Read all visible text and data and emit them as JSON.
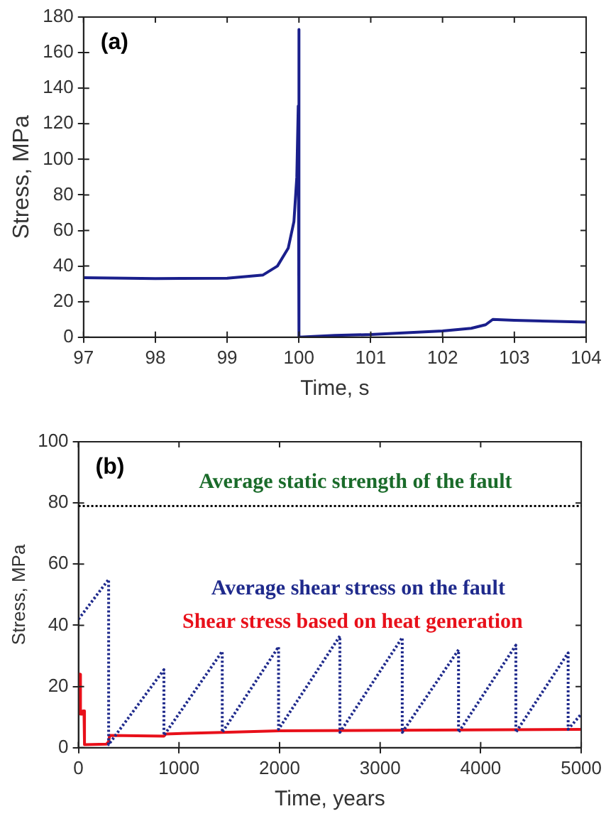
{
  "chart_data": [
    {
      "type": "line",
      "xlabel": "Time, s",
      "ylabel": "Stress, MPa",
      "annotations": [
        "(a)"
      ],
      "xlim": [
        97,
        104
      ],
      "xticks": [
        97,
        98,
        99,
        100,
        101,
        102,
        103,
        104
      ],
      "ylim": [
        0,
        180
      ],
      "yticks": [
        0,
        20,
        40,
        60,
        80,
        100,
        120,
        140,
        160,
        180
      ],
      "grid": false,
      "legend": false,
      "marker": "none",
      "line_style": "solid",
      "series": [
        {
          "color": "#1a1f8c",
          "x": [
            97,
            98,
            99,
            99.5,
            99.7,
            99.85,
            99.93,
            99.97,
            99.99,
            100.0,
            100.0,
            100.5,
            101,
            101.5,
            102,
            102.4,
            102.6,
            102.7,
            103,
            104
          ],
          "values": [
            33.5,
            33,
            33.2,
            35,
            40,
            50,
            65,
            90,
            130,
            173,
            0,
            1,
            1.5,
            2.5,
            3.5,
            5,
            7,
            10,
            9.5,
            8.5
          ]
        }
      ]
    },
    {
      "type": "line",
      "xlabel": "Time, years",
      "ylabel": "Stress, MPa",
      "annotations": [
        "(b)"
      ],
      "xlim": [
        0,
        5000
      ],
      "xticks": [
        0,
        1000,
        2000,
        3000,
        4000,
        5000
      ],
      "ylim": [
        0,
        100
      ],
      "yticks": [
        0,
        20,
        40,
        60,
        80,
        100
      ],
      "grid": false,
      "legend": false,
      "marker": "none",
      "ref_lines": [
        {
          "axis": "y",
          "value": 79,
          "label": "Average static strength of the fault",
          "color": "#000000",
          "line_style": "dotted"
        }
      ],
      "series": [
        {
          "name": "Average shear stress on the fault",
          "color": "#1f2a8c",
          "line_style": "dotted",
          "x": [
            0,
            300,
            300,
            850,
            850,
            1430,
            1430,
            1990,
            1990,
            2600,
            2600,
            3220,
            3220,
            3780,
            3780,
            4350,
            4350,
            4870,
            4870,
            5000
          ],
          "values": [
            42,
            55,
            1,
            25.5,
            4,
            31.5,
            5,
            33,
            6,
            36.5,
            5,
            36,
            5,
            32,
            5,
            33.5,
            5,
            31,
            6,
            11
          ]
        },
        {
          "name": "Shear stress based on heat generation",
          "color": "#e8101a",
          "line_style": "solid",
          "x": [
            0,
            15,
            20,
            40,
            45,
            55,
            60,
            280,
            300,
            310,
            850,
            870,
            1430,
            2000,
            5000
          ],
          "values": [
            24,
            24,
            11,
            11,
            12,
            12,
            1,
            1.2,
            2,
            4,
            3.8,
            4.5,
            5,
            5.5,
            6
          ]
        }
      ]
    }
  ]
}
